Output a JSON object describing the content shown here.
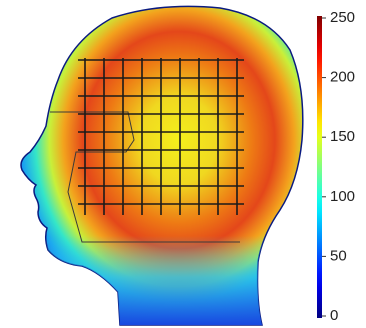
{
  "chart_data": {
    "type": "heatmap",
    "colormap": "jet",
    "clim": [
      0,
      250
    ],
    "cticks": [
      0,
      50,
      100,
      150,
      200,
      250
    ]
  }
}
